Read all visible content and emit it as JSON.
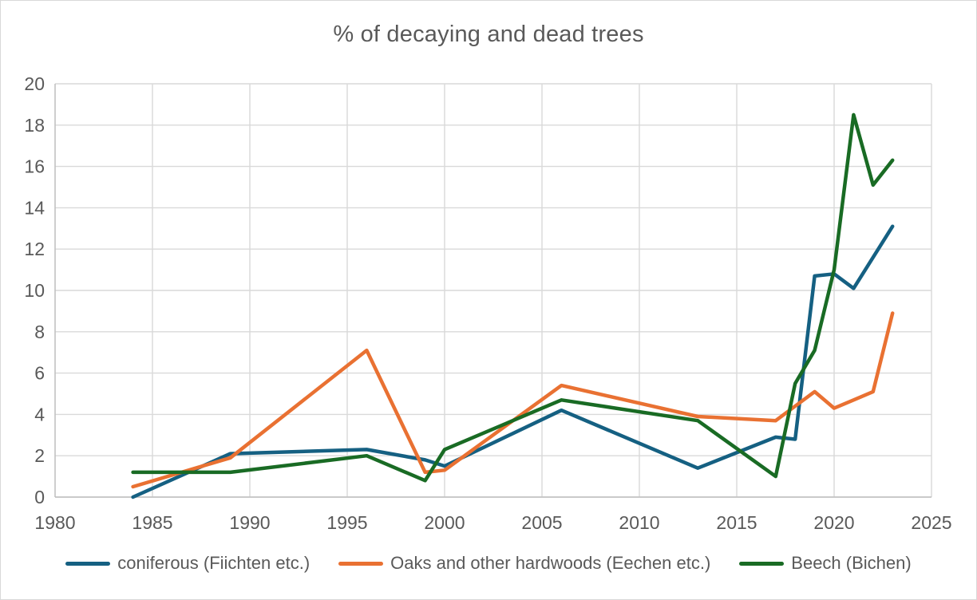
{
  "window": {
    "background": "#FFFFFF",
    "border_color": "#D9D9D9"
  },
  "chart_data": {
    "type": "line",
    "title": "% of decaying and dead trees",
    "title_color": "#595959",
    "text_color": "#595959",
    "grid_color": "#D9D9D9",
    "axis_color": "#BFBFBF",
    "grid": true,
    "legend_position": "bottom",
    "x_axis": {
      "min": 1980,
      "max": 2025,
      "tick_step": 5,
      "ticks": [
        1980,
        1985,
        1990,
        1995,
        2000,
        2005,
        2010,
        2015,
        2020,
        2025
      ]
    },
    "y_axis": {
      "min": 0,
      "max": 20,
      "tick_step": 2,
      "ticks": [
        0,
        2,
        4,
        6,
        8,
        10,
        12,
        14,
        16,
        18,
        20
      ]
    },
    "series": [
      {
        "name": "coniferous (Fiichten etc.)",
        "color": "#156082",
        "points": [
          [
            1984,
            0.0
          ],
          [
            1989,
            2.1
          ],
          [
            1996,
            2.3
          ],
          [
            1999,
            1.8
          ],
          [
            2000,
            1.5
          ],
          [
            2006,
            4.2
          ],
          [
            2013,
            1.4
          ],
          [
            2017,
            2.9
          ],
          [
            2018,
            2.8
          ],
          [
            2019,
            10.7
          ],
          [
            2020,
            10.8
          ],
          [
            2021,
            10.1
          ],
          [
            2022,
            11.6
          ],
          [
            2023,
            13.1
          ]
        ]
      },
      {
        "name": "Oaks and other hardwoods (Eechen etc.)",
        "color": "#E97132",
        "points": [
          [
            1984,
            0.5
          ],
          [
            1989,
            1.9
          ],
          [
            1996,
            7.1
          ],
          [
            1999,
            1.2
          ],
          [
            2000,
            1.3
          ],
          [
            2006,
            5.4
          ],
          [
            2013,
            3.9
          ],
          [
            2017,
            3.7
          ],
          [
            2018,
            4.4
          ],
          [
            2019,
            5.1
          ],
          [
            2020,
            4.3
          ],
          [
            2021,
            4.7
          ],
          [
            2022,
            5.1
          ],
          [
            2023,
            8.9
          ]
        ]
      },
      {
        "name": "Beech (Bichen)",
        "color": "#196B24",
        "points": [
          [
            1984,
            1.2
          ],
          [
            1989,
            1.2
          ],
          [
            1996,
            2.0
          ],
          [
            1999,
            0.8
          ],
          [
            2000,
            2.3
          ],
          [
            2006,
            4.7
          ],
          [
            2013,
            3.7
          ],
          [
            2017,
            1.0
          ],
          [
            2018,
            5.5
          ],
          [
            2019,
            7.1
          ],
          [
            2020,
            11.0
          ],
          [
            2021,
            18.5
          ],
          [
            2022,
            15.1
          ],
          [
            2023,
            16.3
          ]
        ]
      }
    ]
  }
}
